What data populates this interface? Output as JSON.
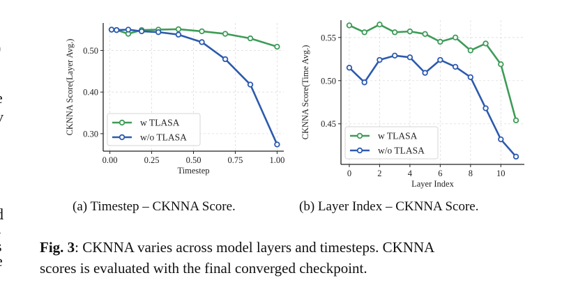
{
  "edge_fragments": [
    ")",
    "e",
    "v",
    "d",
    "-",
    "s",
    "e",
    "i"
  ],
  "chart_data": [
    {
      "type": "line",
      "id": "a",
      "title": "",
      "xlabel": "Timestep",
      "ylabel": "CKNNA Score(Layer Avg.)",
      "xlim": [
        -0.04,
        1.04
      ],
      "ylim": [
        0.258,
        0.566
      ],
      "xticks": [
        0.0,
        0.25,
        0.5,
        0.75,
        1.0
      ],
      "xtick_labels": [
        "0.00",
        "0.25",
        "0.50",
        "0.75",
        "1.00"
      ],
      "yticks": [
        0.3,
        0.4,
        0.5
      ],
      "ytick_labels": [
        "0.30",
        "0.40",
        "0.50"
      ],
      "grid": true,
      "legend_position": "lower-left",
      "x": [
        0.01,
        0.04,
        0.11,
        0.19,
        0.29,
        0.41,
        0.55,
        0.69,
        0.84,
        1.0
      ],
      "series": [
        {
          "name": "w TLASA",
          "color": "#3d9b57",
          "values": [
            0.55,
            0.549,
            0.54,
            0.549,
            0.55,
            0.551,
            0.546,
            0.54,
            0.529,
            0.509
          ]
        },
        {
          "name": "w/o TLASA",
          "color": "#2c5aad",
          "values": [
            0.55,
            0.549,
            0.55,
            0.546,
            0.544,
            0.538,
            0.52,
            0.479,
            0.418,
            0.274
          ]
        }
      ]
    },
    {
      "type": "line",
      "id": "b",
      "title": "",
      "xlabel": "Layer Index",
      "ylabel": "CKNNA Score(Time Avg.)",
      "xlim": [
        -0.55,
        11.55
      ],
      "ylim": [
        0.403,
        0.57
      ],
      "xticks": [
        0,
        2,
        4,
        6,
        8,
        10
      ],
      "xtick_labels": [
        "0",
        "2",
        "4",
        "6",
        "8",
        "10"
      ],
      "yticks": [
        0.45,
        0.5,
        0.55
      ],
      "ytick_labels": [
        "0.45",
        "0.50",
        "0.55"
      ],
      "grid": true,
      "legend_position": "lower-left",
      "x": [
        0,
        1,
        2,
        3,
        4,
        5,
        6,
        7,
        8,
        9,
        10,
        11
      ],
      "series": [
        {
          "name": "w TLASA",
          "color": "#3d9b57",
          "values": [
            0.564,
            0.556,
            0.565,
            0.556,
            0.557,
            0.554,
            0.545,
            0.55,
            0.535,
            0.543,
            0.519,
            0.454
          ]
        },
        {
          "name": "w/o TLASA",
          "color": "#2c5aad",
          "values": [
            0.515,
            0.498,
            0.524,
            0.529,
            0.527,
            0.509,
            0.524,
            0.516,
            0.504,
            0.468,
            0.432,
            0.412
          ]
        }
      ]
    }
  ],
  "subcaptions": {
    "a": "(a) Timestep – CKNNA Score.",
    "b": "(b) Layer Index – CKNNA Score."
  },
  "figure_caption": {
    "label": "Fig. 3",
    "line1": ": CKNNA varies across model layers and timesteps. CKNNA",
    "line2": "scores is evaluated with the final converged checkpoint."
  }
}
